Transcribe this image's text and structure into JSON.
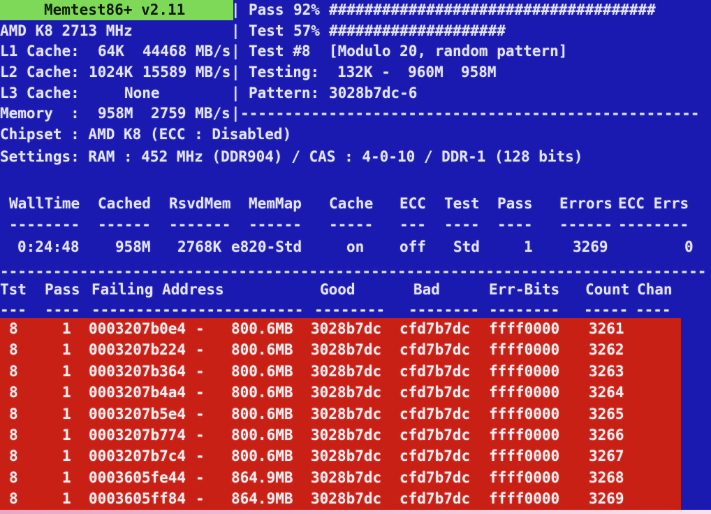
{
  "colors": {
    "background": "#1a1ab0",
    "title_bar_bg": "#7dd957",
    "title_text": "#0d1803",
    "text": "#e4e4fb",
    "error_bg": "#c92016",
    "error_text": "#f6eef0"
  },
  "title_bar": {
    "title": "Memtest86+ v2.11"
  },
  "progress": {
    "pass_label": "Pass",
    "pass_percent": "92%",
    "pass_bar": "#####################################",
    "test_label": "Test",
    "test_percent": "57%",
    "test_bar": "####################"
  },
  "test_info": {
    "test_number": "Test #8",
    "test_description": "[Modulo 20, random pattern]",
    "testing_label": "Testing:",
    "testing_range": "132K -  960M  958M",
    "pattern_label": "Pattern:",
    "pattern_value": "3028b7dc-6"
  },
  "cpu_info": {
    "model": "AMD K8 2713 MHz",
    "l1_label": "L1 Cache:",
    "l1_size": "64K",
    "l1_speed": "44468 MB/s",
    "l2_label": "L2 Cache:",
    "l2_size": "1024K",
    "l2_speed": "15589 MB/s",
    "l3_label": "L3 Cache:",
    "l3_value": "None",
    "memory_label": "Memory  :",
    "memory_size": "958M",
    "memory_speed": "2759 MB/s",
    "chipset": "Chipset : AMD K8 (ECC : Disabled)",
    "settings": "Settings: RAM : 452 MHz (DDR904) / CAS : 4-0-10 / DDR-1 (128 bits)"
  },
  "dividers": {
    "vertical_bar": "|",
    "right_dashes": "----------------------------------------------------",
    "full_line": "--------------------------------------------------------------------------------"
  },
  "summary_table": {
    "headers": {
      "walltime": "WallTime",
      "cached": "Cached",
      "rsvdmem": "RsvdMem",
      "memmap": "MemMap",
      "cache": "Cache",
      "ecc": "ECC",
      "test": "Test",
      "pass": "Pass",
      "errors": "Errors",
      "ecc_errs": "ECC Errs"
    },
    "underlines": {
      "walltime": "--------",
      "cached": "------",
      "rsvdmem": "-------",
      "memmap": "------",
      "cache": "-----",
      "ecc": "---",
      "test": "----",
      "pass": "----",
      "errors": "------",
      "ecc_errs": "--------"
    },
    "values": {
      "walltime": "0:24:48",
      "cached": "958M",
      "rsvdmem": "2768K",
      "memmap": "e820-Std",
      "cache": "on",
      "ecc": "off",
      "test": "Std",
      "pass": "1",
      "errors": "3269",
      "ecc_errs": "0"
    }
  },
  "error_table": {
    "headers": {
      "tst": "Tst",
      "pass": "Pass",
      "failing_address": "Failing Address",
      "good": "Good",
      "bad": "Bad",
      "err_bits": "Err-Bits",
      "count": "Count",
      "chan": "Chan"
    },
    "underlines": {
      "tst": "---",
      "pass": "----",
      "failing_address": "------------------------",
      "good": "--------",
      "bad": "--------",
      "err_bits": "--------",
      "count": "-----",
      "chan": "----"
    },
    "rows": [
      {
        "tst": "8",
        "pass": "1",
        "address": "0003207b0e4",
        "dash": "-",
        "mb": "800.6MB",
        "good": "3028b7dc",
        "bad": "cfd7b7dc",
        "err_bits": "ffff0000",
        "count": "3261",
        "chan": ""
      },
      {
        "tst": "8",
        "pass": "1",
        "address": "0003207b224",
        "dash": "-",
        "mb": "800.6MB",
        "good": "3028b7dc",
        "bad": "cfd7b7dc",
        "err_bits": "ffff0000",
        "count": "3262",
        "chan": ""
      },
      {
        "tst": "8",
        "pass": "1",
        "address": "0003207b364",
        "dash": "-",
        "mb": "800.6MB",
        "good": "3028b7dc",
        "bad": "cfd7b7dc",
        "err_bits": "ffff0000",
        "count": "3263",
        "chan": ""
      },
      {
        "tst": "8",
        "pass": "1",
        "address": "0003207b4a4",
        "dash": "-",
        "mb": "800.6MB",
        "good": "3028b7dc",
        "bad": "cfd7b7dc",
        "err_bits": "ffff0000",
        "count": "3264",
        "chan": ""
      },
      {
        "tst": "8",
        "pass": "1",
        "address": "0003207b5e4",
        "dash": "-",
        "mb": "800.6MB",
        "good": "3028b7dc",
        "bad": "cfd7b7dc",
        "err_bits": "ffff0000",
        "count": "3265",
        "chan": ""
      },
      {
        "tst": "8",
        "pass": "1",
        "address": "0003207b774",
        "dash": "-",
        "mb": "800.6MB",
        "good": "3028b7dc",
        "bad": "cfd7b7dc",
        "err_bits": "ffff0000",
        "count": "3266",
        "chan": ""
      },
      {
        "tst": "8",
        "pass": "1",
        "address": "0003207b7c4",
        "dash": "-",
        "mb": "800.6MB",
        "good": "3028b7dc",
        "bad": "cfd7b7dc",
        "err_bits": "ffff0000",
        "count": "3267",
        "chan": ""
      },
      {
        "tst": "8",
        "pass": "1",
        "address": "0003605fe44",
        "dash": "-",
        "mb": "864.9MB",
        "good": "3028b7dc",
        "bad": "cfd7b7dc",
        "err_bits": "ffff0000",
        "count": "3268",
        "chan": ""
      },
      {
        "tst": "8",
        "pass": "1",
        "address": "0003605ff84",
        "dash": "-",
        "mb": "864.9MB",
        "good": "3028b7dc",
        "bad": "cfd7b7dc",
        "err_bits": "ffff0000",
        "count": "3269",
        "chan": ""
      }
    ]
  }
}
